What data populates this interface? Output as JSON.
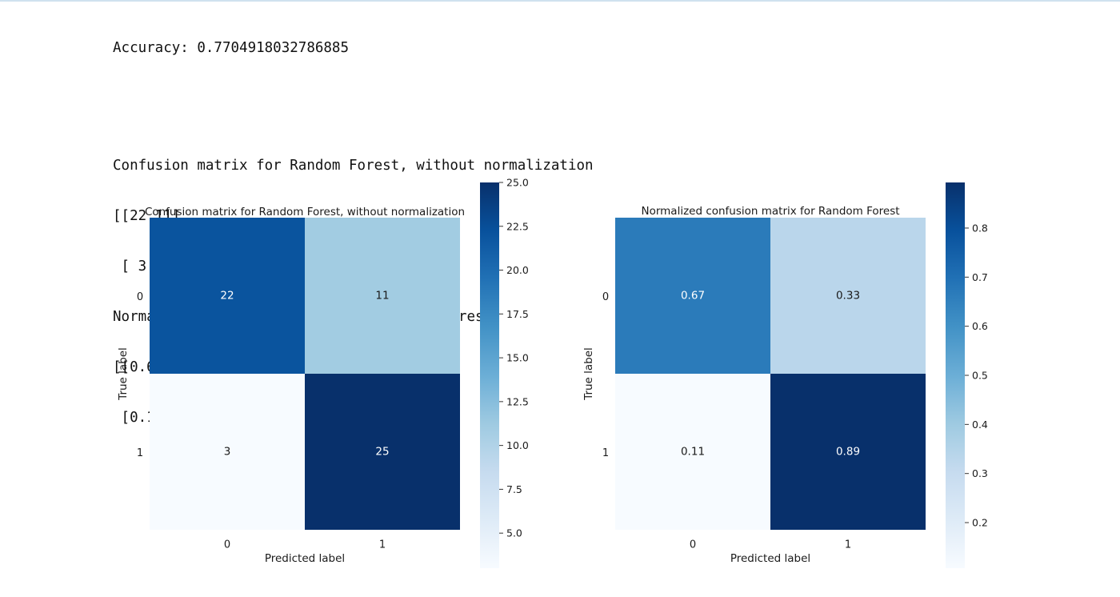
{
  "console": {
    "accuracy_line": "Accuracy: 0.7704918032786885",
    "lines": [
      "Confusion matrix for Random Forest, without normalization",
      "[[22 11]",
      " [ 3 25]]",
      "Normalized confusion matrix for Random Forest",
      "[[0.66666667 0.33333333]",
      " [0.10714286 0.89285714]]"
    ]
  },
  "chart_data": [
    {
      "type": "heatmap",
      "title": "Confusion matrix for Random Forest, without normalization",
      "xlabel": "Predicted label",
      "ylabel": "True label",
      "x_categories": [
        "0",
        "1"
      ],
      "y_categories": [
        "0",
        "1"
      ],
      "values": [
        [
          22,
          11
        ],
        [
          3,
          25
        ]
      ],
      "cell_labels": [
        [
          "22",
          "11"
        ],
        [
          "3",
          "25"
        ]
      ],
      "colormap": "Blues",
      "colorbar": {
        "min": 3,
        "max": 25,
        "ticks": [
          "5.0",
          "7.5",
          "10.0",
          "12.5",
          "15.0",
          "17.5",
          "20.0",
          "22.5",
          "25.0"
        ],
        "tick_values": [
          5.0,
          7.5,
          10.0,
          12.5,
          15.0,
          17.5,
          20.0,
          22.5,
          25.0
        ]
      },
      "grid": false
    },
    {
      "type": "heatmap",
      "title": "Normalized confusion matrix for Random Forest",
      "xlabel": "Predicted label",
      "ylabel": "True label",
      "x_categories": [
        "0",
        "1"
      ],
      "y_categories": [
        "0",
        "1"
      ],
      "values": [
        [
          0.66666667,
          0.33333333
        ],
        [
          0.10714286,
          0.89285714
        ]
      ],
      "cell_labels": [
        [
          "0.67",
          "0.33"
        ],
        [
          "0.11",
          "0.89"
        ]
      ],
      "colormap": "Blues",
      "colorbar": {
        "min": 0.10714286,
        "max": 0.89285714,
        "ticks": [
          "0.2",
          "0.3",
          "0.4",
          "0.5",
          "0.6",
          "0.7",
          "0.8"
        ],
        "tick_values": [
          0.2,
          0.3,
          0.4,
          0.5,
          0.6,
          0.7,
          0.8
        ]
      },
      "grid": false
    }
  ]
}
